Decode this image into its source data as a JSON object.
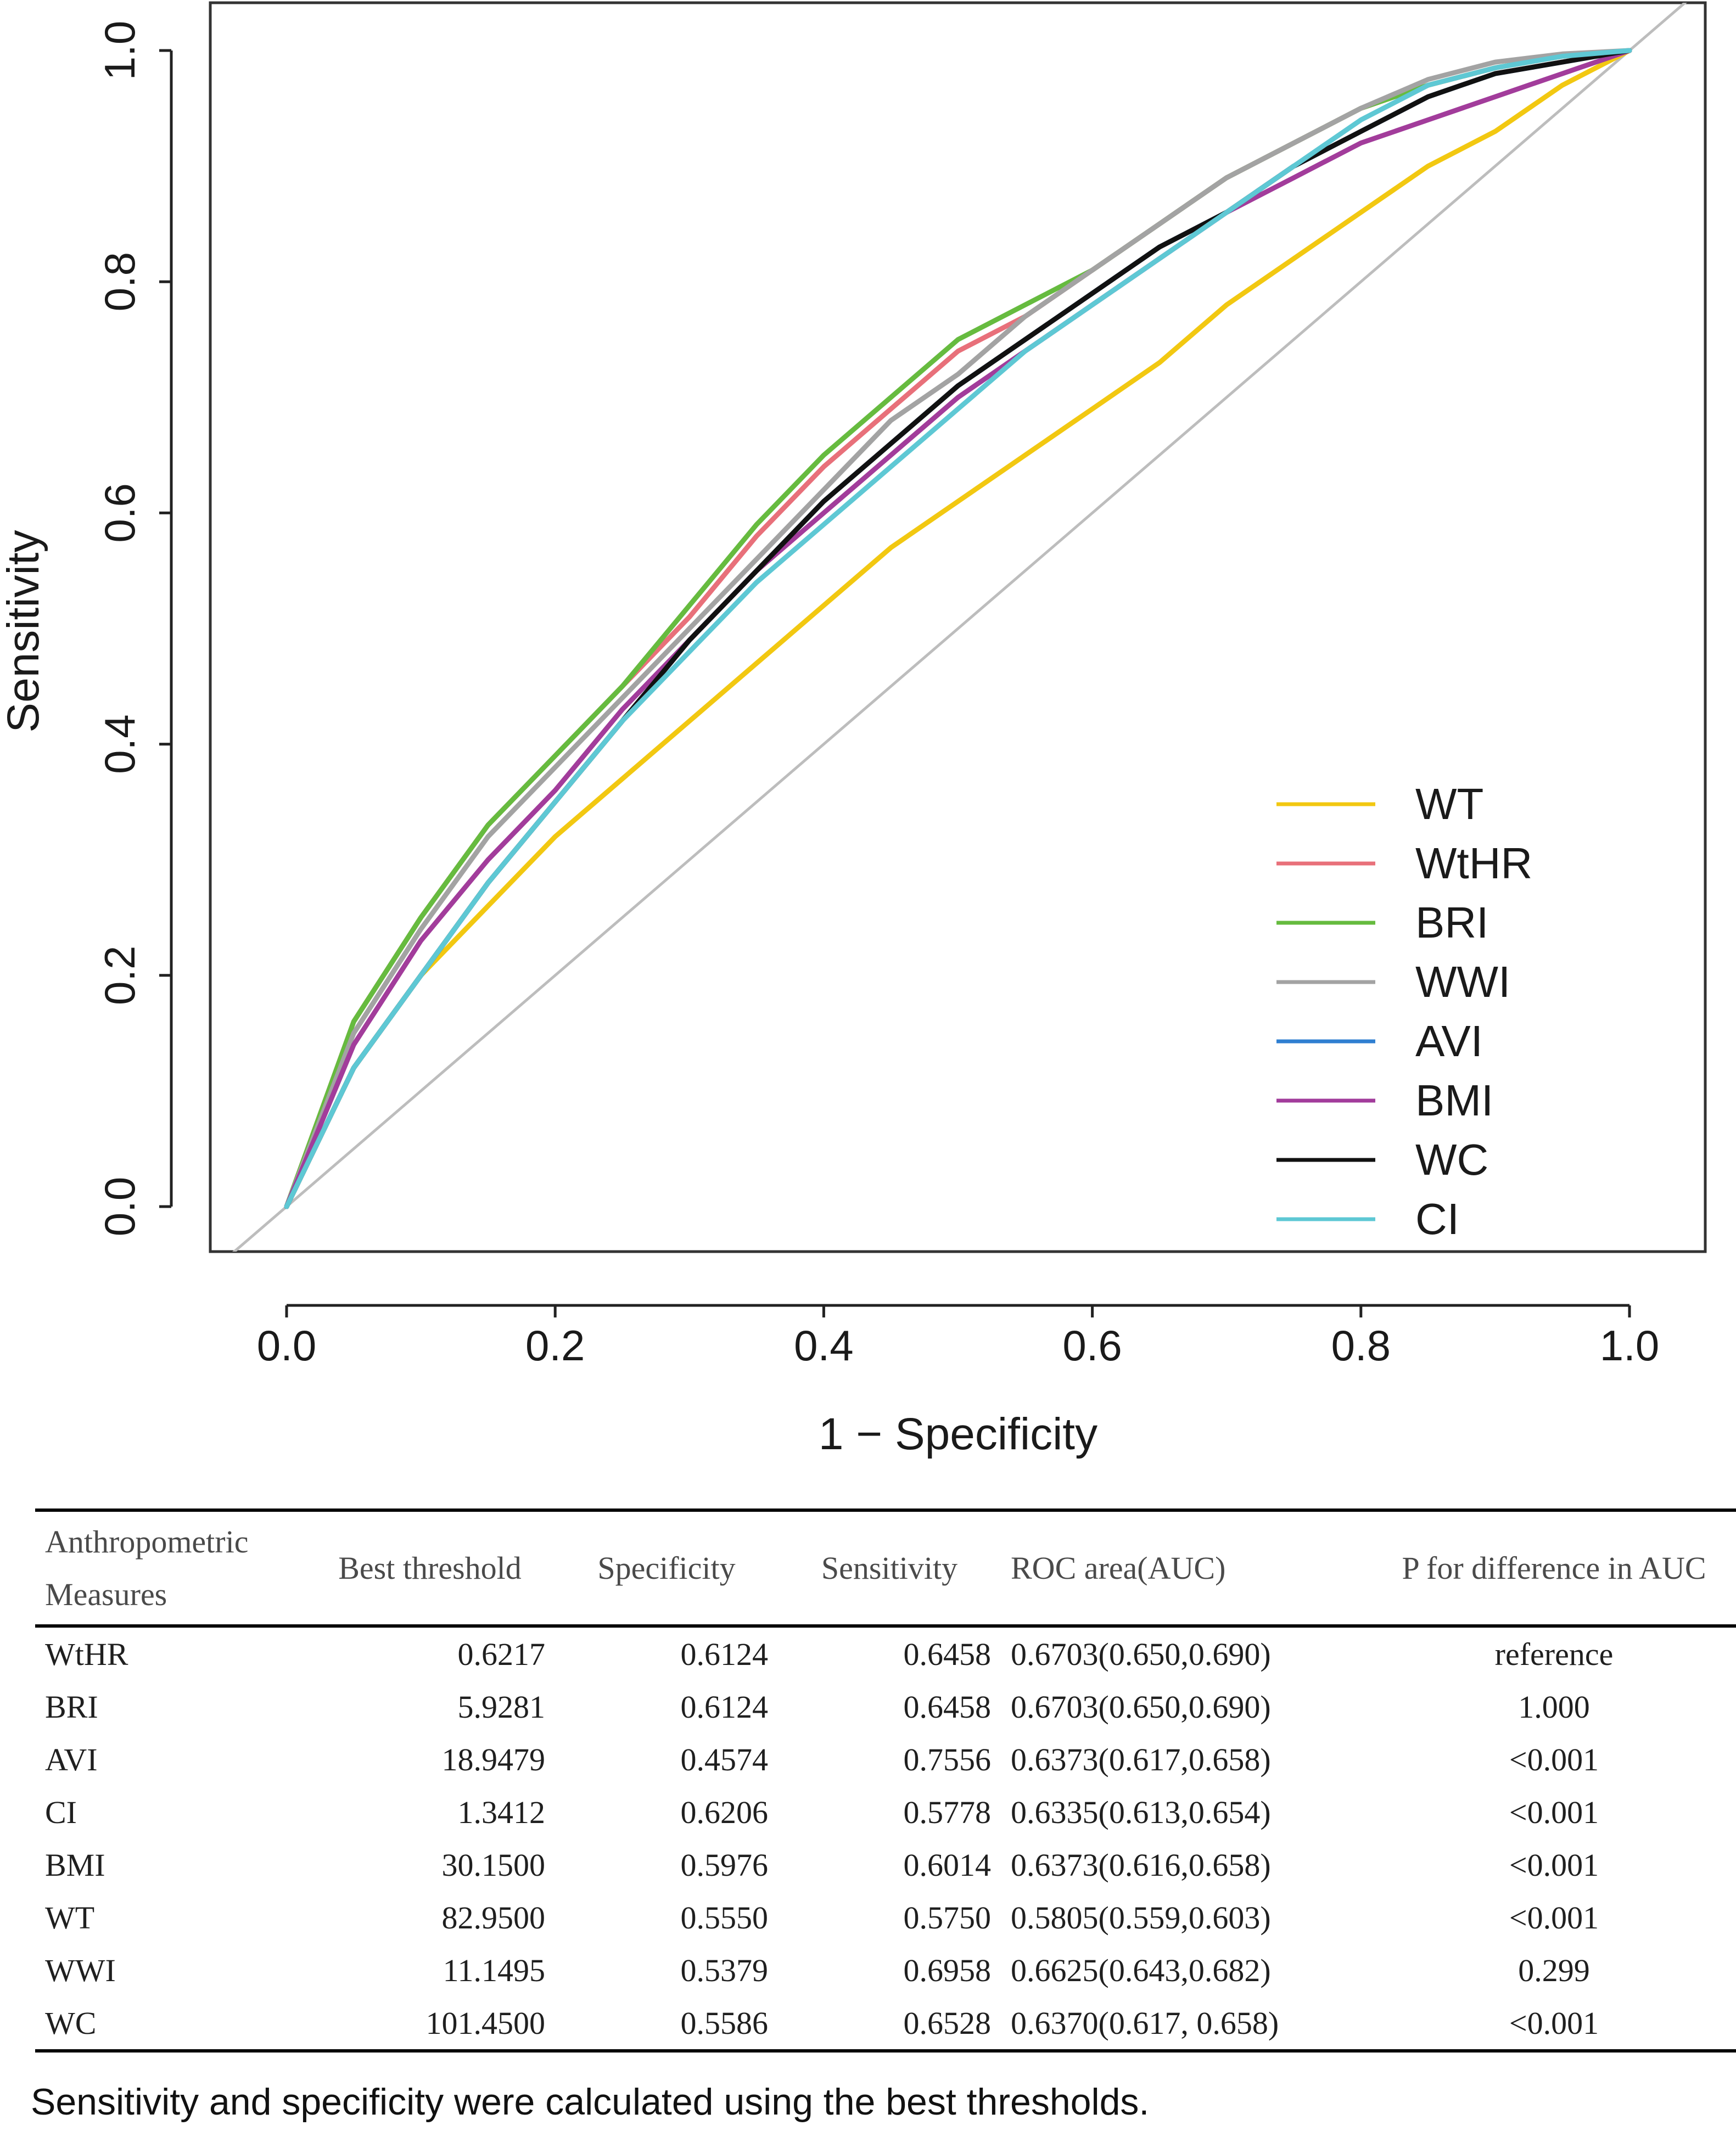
{
  "chart_data": {
    "type": "line",
    "xlabel": "1 − Specificity",
    "ylabel": "Sensitivity",
    "xlim": [
      0,
      1
    ],
    "ylim": [
      0,
      1
    ],
    "xticks": [
      "0.0",
      "0.2",
      "0.4",
      "0.6",
      "0.8",
      "1.0"
    ],
    "yticks": [
      "0.0",
      "0.2",
      "0.4",
      "0.6",
      "0.8",
      "1.0"
    ],
    "grid": false,
    "legend_position": "bottom-right",
    "reference_line": {
      "x": [
        0,
        1
      ],
      "y": [
        0,
        1
      ],
      "color": "#bdbdbd"
    },
    "series": [
      {
        "name": "WT",
        "color": "#f2c811",
        "x": [
          0,
          0.05,
          0.1,
          0.15,
          0.2,
          0.25,
          0.3,
          0.35,
          0.4,
          0.45,
          0.5,
          0.55,
          0.6,
          0.65,
          0.7,
          0.75,
          0.8,
          0.85,
          0.9,
          0.95,
          1.0
        ],
        "y": [
          0,
          0.12,
          0.2,
          0.26,
          0.32,
          0.37,
          0.42,
          0.47,
          0.52,
          0.57,
          0.61,
          0.65,
          0.69,
          0.73,
          0.78,
          0.82,
          0.86,
          0.9,
          0.93,
          0.97,
          1.0
        ]
      },
      {
        "name": "WtHR",
        "color": "#e8707a",
        "x": [
          0,
          0.05,
          0.1,
          0.15,
          0.2,
          0.25,
          0.3,
          0.35,
          0.4,
          0.45,
          0.5,
          0.55,
          0.6,
          0.65,
          0.7,
          0.75,
          0.8,
          0.85,
          0.9,
          0.95,
          1.0
        ],
        "y": [
          0,
          0.16,
          0.25,
          0.33,
          0.39,
          0.45,
          0.51,
          0.58,
          0.64,
          0.69,
          0.74,
          0.77,
          0.81,
          0.85,
          0.89,
          0.92,
          0.95,
          0.97,
          0.985,
          0.995,
          1.0
        ]
      },
      {
        "name": "BRI",
        "color": "#66bb3f",
        "x": [
          0,
          0.05,
          0.1,
          0.15,
          0.2,
          0.25,
          0.3,
          0.35,
          0.4,
          0.45,
          0.5,
          0.55,
          0.6,
          0.65,
          0.7,
          0.75,
          0.8,
          0.85,
          0.9,
          0.95,
          1.0
        ],
        "y": [
          0,
          0.16,
          0.25,
          0.33,
          0.39,
          0.45,
          0.52,
          0.59,
          0.65,
          0.7,
          0.75,
          0.78,
          0.81,
          0.85,
          0.89,
          0.92,
          0.95,
          0.97,
          0.985,
          0.995,
          1.0
        ]
      },
      {
        "name": "WWI",
        "color": "#a3a3a3",
        "x": [
          0,
          0.05,
          0.1,
          0.15,
          0.2,
          0.25,
          0.3,
          0.35,
          0.4,
          0.45,
          0.5,
          0.55,
          0.6,
          0.65,
          0.7,
          0.75,
          0.8,
          0.85,
          0.9,
          0.95,
          1.0
        ],
        "y": [
          0,
          0.15,
          0.24,
          0.32,
          0.38,
          0.44,
          0.5,
          0.56,
          0.62,
          0.68,
          0.72,
          0.77,
          0.81,
          0.85,
          0.89,
          0.92,
          0.95,
          0.975,
          0.99,
          0.997,
          1.0
        ]
      },
      {
        "name": "AVI",
        "color": "#2f7fd1",
        "x": [
          0,
          0.05,
          0.1,
          0.15,
          0.2,
          0.25,
          0.3,
          0.35,
          0.4,
          0.45,
          0.5,
          0.55,
          0.6,
          0.65,
          0.7,
          0.75,
          0.8,
          0.85,
          0.9,
          0.95,
          1.0
        ],
        "y": [
          0,
          0.12,
          0.2,
          0.28,
          0.35,
          0.42,
          0.49,
          0.55,
          0.61,
          0.66,
          0.71,
          0.75,
          0.79,
          0.83,
          0.86,
          0.9,
          0.93,
          0.96,
          0.98,
          0.99,
          1.0
        ]
      },
      {
        "name": "BMI",
        "color": "#a23c9b",
        "x": [
          0,
          0.05,
          0.1,
          0.15,
          0.2,
          0.25,
          0.3,
          0.35,
          0.4,
          0.45,
          0.5,
          0.55,
          0.6,
          0.65,
          0.7,
          0.75,
          0.8,
          0.85,
          0.9,
          0.95,
          1.0
        ],
        "y": [
          0,
          0.14,
          0.23,
          0.3,
          0.36,
          0.43,
          0.49,
          0.55,
          0.6,
          0.65,
          0.7,
          0.74,
          0.78,
          0.82,
          0.86,
          0.89,
          0.92,
          0.94,
          0.96,
          0.98,
          1.0
        ]
      },
      {
        "name": "WC",
        "color": "#111111",
        "x": [
          0,
          0.05,
          0.1,
          0.15,
          0.2,
          0.25,
          0.3,
          0.35,
          0.4,
          0.45,
          0.5,
          0.55,
          0.6,
          0.65,
          0.7,
          0.75,
          0.8,
          0.85,
          0.9,
          0.95,
          1.0
        ],
        "y": [
          0,
          0.12,
          0.2,
          0.28,
          0.35,
          0.42,
          0.49,
          0.55,
          0.61,
          0.66,
          0.71,
          0.75,
          0.79,
          0.83,
          0.86,
          0.9,
          0.93,
          0.96,
          0.98,
          0.99,
          1.0
        ]
      },
      {
        "name": "CI",
        "color": "#5ec8d4",
        "x": [
          0,
          0.05,
          0.1,
          0.15,
          0.2,
          0.25,
          0.3,
          0.35,
          0.4,
          0.45,
          0.5,
          0.55,
          0.6,
          0.65,
          0.7,
          0.75,
          0.8,
          0.85,
          0.9,
          0.95,
          1.0
        ],
        "y": [
          0,
          0.12,
          0.2,
          0.28,
          0.35,
          0.42,
          0.48,
          0.54,
          0.59,
          0.64,
          0.69,
          0.74,
          0.78,
          0.82,
          0.86,
          0.9,
          0.94,
          0.97,
          0.985,
          0.995,
          1.0
        ]
      }
    ]
  },
  "table": {
    "headers": {
      "measure_line1": "Anthropometric",
      "measure_line2": "Measures",
      "threshold": "Best threshold",
      "specificity": "Specificity",
      "sensitivity": "Sensitivity",
      "auc": "ROC area(AUC)",
      "p": "P for difference in AUC"
    },
    "rows": [
      {
        "measure": "WtHR",
        "threshold": "0.6217",
        "specificity": "0.6124",
        "sensitivity": "0.6458",
        "auc": "0.6703(0.650,0.690)",
        "p": "reference"
      },
      {
        "measure": "BRI",
        "threshold": "5.9281",
        "specificity": "0.6124",
        "sensitivity": "0.6458",
        "auc": "0.6703(0.650,0.690)",
        "p": "1.000"
      },
      {
        "measure": "AVI",
        "threshold": "18.9479",
        "specificity": "0.4574",
        "sensitivity": "0.7556",
        "auc": "0.6373(0.617,0.658)",
        "p": "<0.001"
      },
      {
        "measure": "CI",
        "threshold": "1.3412",
        "specificity": "0.6206",
        "sensitivity": "0.5778",
        "auc": "0.6335(0.613,0.654)",
        "p": "<0.001"
      },
      {
        "measure": "BMI",
        "threshold": "30.1500",
        "specificity": "0.5976",
        "sensitivity": "0.6014",
        "auc": "0.6373(0.616,0.658)",
        "p": "<0.001"
      },
      {
        "measure": "WT",
        "threshold": "82.9500",
        "specificity": "0.5550",
        "sensitivity": "0.5750",
        "auc": "0.5805(0.559,0.603)",
        "p": "<0.001"
      },
      {
        "measure": "WWI",
        "threshold": "11.1495",
        "specificity": "0.5379",
        "sensitivity": "0.6958",
        "auc": "0.6625(0.643,0.682)",
        "p": "0.299"
      },
      {
        "measure": "WC",
        "threshold": "101.4500",
        "specificity": "0.5586",
        "sensitivity": "0.6528",
        "auc": "0.6370(0.617, 0.658)",
        "p": "<0.001"
      }
    ]
  },
  "footnote": "Sensitivity and specificity were calculated using the best thresholds."
}
